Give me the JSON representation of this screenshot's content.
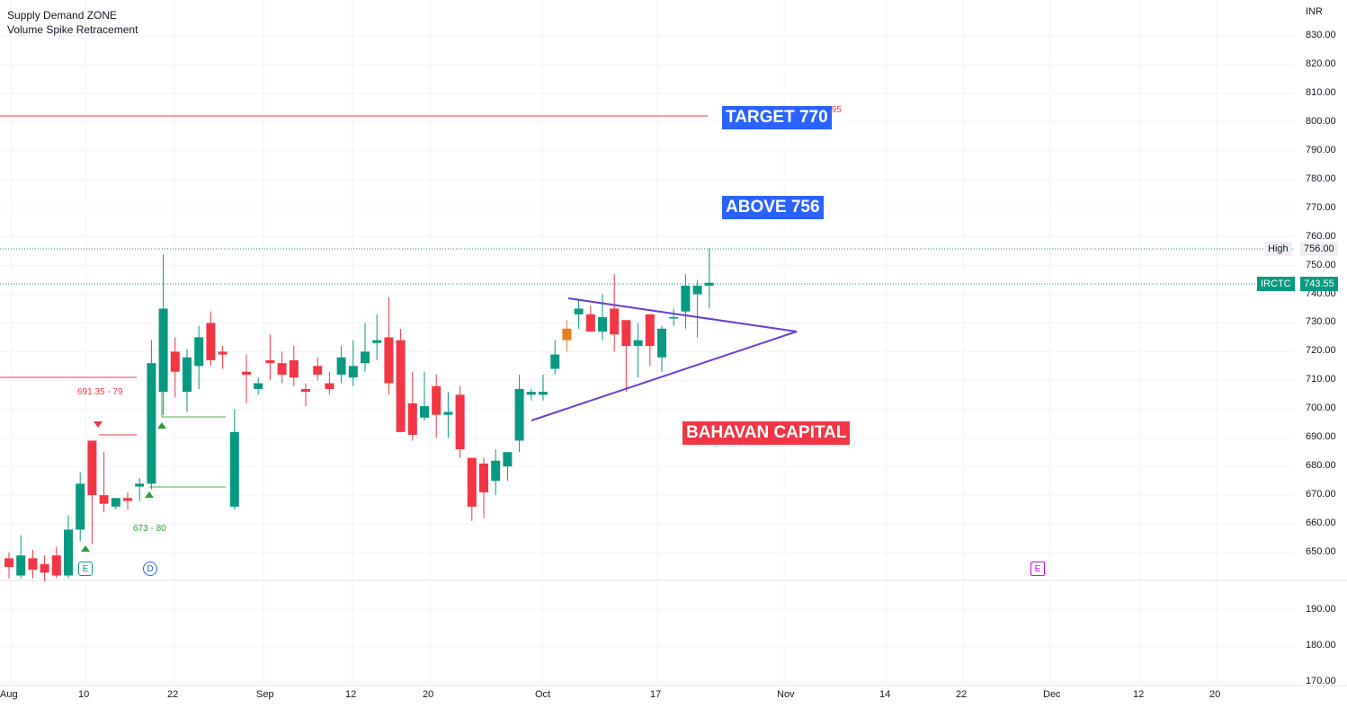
{
  "legend": {
    "line1": "Supply Demand ZONE",
    "line2": "Volume Spike Retracement"
  },
  "currency": "INR",
  "annotations": {
    "target": "TARGET 770",
    "target_suffix": ".95",
    "above": "ABOVE 756",
    "brand": "BAHAVAN CAPITAL",
    "zone_red": "691.35 - 79",
    "zone_green": "673 - 80"
  },
  "badges": {
    "high_label": "High",
    "high_value": "756.00",
    "symbol": "IRCTC",
    "symbol_value": "743.55"
  },
  "markers": {
    "earnings1": "E",
    "dividend": "D",
    "earnings2": "E"
  },
  "colors": {
    "up": "#089981",
    "down": "#f23645",
    "accent": "#2962ff",
    "triangle": "#6a3fd1",
    "highlight": "#e67e22"
  },
  "chart_data": {
    "type": "candlestick",
    "ylim": [
      645,
      835
    ],
    "y_ticks": [
      "830.00",
      "820.00",
      "810.00",
      "800.00",
      "790.00",
      "780.00",
      "770.00",
      "760.00",
      "750.00",
      "740.00",
      "730.00",
      "720.00",
      "710.00",
      "700.00",
      "690.00",
      "680.00",
      "670.00",
      "660.00",
      "650.00"
    ],
    "lower_ticks": [
      "190.00",
      "180.00",
      "170.00"
    ],
    "x_labels": [
      "Aug",
      "10",
      "22",
      "Sep",
      "12",
      "20",
      "Oct",
      "17",
      "Nov",
      "14",
      "22",
      "Dec",
      "12",
      "20"
    ],
    "candles": [
      [
        648,
        645,
        650,
        641
      ],
      [
        642,
        649,
        656,
        641
      ],
      [
        648,
        644,
        651,
        641
      ],
      [
        646,
        643,
        649,
        640
      ],
      [
        649,
        642,
        652,
        641
      ],
      [
        642,
        658,
        663,
        641
      ],
      [
        658,
        674,
        678,
        654
      ],
      [
        689,
        670,
        680,
        653
      ],
      [
        670,
        667,
        685,
        664
      ],
      [
        666,
        669,
        669,
        665
      ],
      [
        669,
        668,
        671,
        665
      ],
      [
        673,
        674,
        676,
        668
      ],
      [
        674,
        716,
        724,
        672
      ],
      [
        706,
        735,
        754,
        698
      ],
      [
        720,
        713,
        725,
        704
      ],
      [
        706,
        718,
        721,
        699
      ],
      [
        715,
        725,
        729,
        707
      ],
      [
        730,
        717,
        734,
        715
      ],
      [
        720,
        719,
        722,
        714
      ],
      [
        666,
        692,
        700,
        665
      ],
      [
        713,
        712,
        719,
        702
      ],
      [
        707,
        709,
        711,
        705
      ],
      [
        717,
        716,
        726,
        710
      ],
      [
        716,
        712,
        720,
        709
      ],
      [
        717,
        711,
        722,
        708
      ],
      [
        707,
        706,
        709,
        701
      ],
      [
        715,
        712,
        718,
        710
      ],
      [
        709,
        707,
        713,
        705
      ],
      [
        712,
        718,
        722,
        709
      ],
      [
        711,
        715,
        724,
        708
      ],
      [
        716,
        720,
        730,
        713
      ],
      [
        723,
        724,
        733,
        717
      ],
      [
        725,
        709,
        739,
        705
      ],
      [
        724,
        692,
        728,
        693
      ],
      [
        702,
        691,
        713,
        689
      ],
      [
        697,
        701,
        713,
        696
      ],
      [
        708,
        698,
        712,
        690
      ],
      [
        698,
        699,
        706,
        690
      ],
      [
        705,
        686,
        708,
        683
      ],
      [
        683,
        666,
        682,
        661
      ],
      [
        681,
        671,
        683,
        662
      ],
      [
        675,
        682,
        686,
        670
      ],
      [
        680,
        685,
        681,
        675
      ],
      [
        689,
        707,
        712,
        685
      ],
      [
        705,
        706,
        707,
        703
      ],
      [
        705,
        706,
        712,
        703
      ],
      [
        714,
        719,
        724,
        712
      ],
      [
        728,
        724,
        731,
        720
      ],
      [
        733,
        735,
        738,
        728
      ],
      [
        733,
        727,
        736,
        727
      ],
      [
        727,
        732,
        740,
        724
      ],
      [
        735,
        726,
        747,
        720
      ],
      [
        731,
        722,
        729,
        706
      ],
      [
        722,
        724,
        730,
        711
      ],
      [
        733,
        722,
        733,
        715
      ],
      [
        718,
        728,
        729,
        713
      ],
      [
        732,
        732,
        735,
        729
      ],
      [
        734,
        743,
        747,
        728
      ],
      [
        740,
        743,
        745,
        725
      ],
      [
        743,
        744,
        756,
        735
      ]
    ]
  }
}
